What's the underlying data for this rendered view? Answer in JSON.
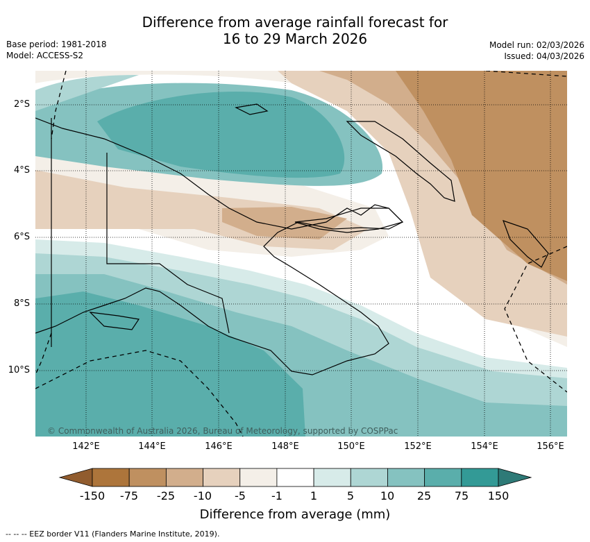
{
  "title_line1": "Difference from average rainfall forecast for",
  "title_line2": "16 to 29 March 2026",
  "base_period": "Base period: 1981-2018",
  "model": "Model: ACCESS-S2",
  "model_run": "Model run: 02/03/2026",
  "issued": "Issued: 04/03/2026",
  "lat_ticks": [
    "2°S",
    "4°S",
    "6°S",
    "8°S",
    "10°S"
  ],
  "lon_ticks": [
    "142°E",
    "144°E",
    "146°E",
    "148°E",
    "150°E",
    "152°E",
    "154°E",
    "156°E"
  ],
  "copyright": "© Commonwealth of Australia 2026, Bureau of Meteorology, supported by COSPPac",
  "colorbar": {
    "labels": [
      "-150",
      "-75",
      "-25",
      "-10",
      "-5",
      "-1",
      "1",
      "5",
      "10",
      "25",
      "75",
      "150"
    ],
    "colors": [
      "#ad753b",
      "#bf9060",
      "#d2ae8c",
      "#e6d1bd",
      "#f4efe8",
      "#ffffff",
      "#d7ebe9",
      "#aed6d4",
      "#85c2c0",
      "#5aaeab",
      "#339a96"
    ],
    "under_color": "#915c2e",
    "over_color": "#2e7a77",
    "title": "Difference from average (mm)"
  },
  "legend_line": "--  --  -- EEZ border V11 (Flanders Marine Institute, 2019)."
}
